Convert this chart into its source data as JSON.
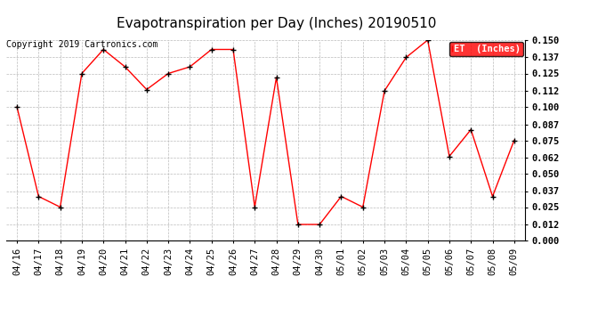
{
  "title": "Evapotranspiration per Day (Inches) 20190510",
  "copyright": "Copyright 2019 Cartronics.com",
  "legend_label": "ET  (Inches)",
  "x_labels": [
    "04/16",
    "04/17",
    "04/18",
    "04/19",
    "04/20",
    "04/21",
    "04/22",
    "04/23",
    "04/24",
    "04/25",
    "04/26",
    "04/27",
    "04/28",
    "04/29",
    "04/30",
    "05/01",
    "05/02",
    "05/03",
    "05/04",
    "05/05",
    "05/06",
    "05/07",
    "05/08",
    "05/09"
  ],
  "y_values": [
    0.1,
    0.033,
    0.025,
    0.125,
    0.143,
    0.13,
    0.113,
    0.125,
    0.13,
    0.143,
    0.143,
    0.025,
    0.122,
    0.012,
    0.012,
    0.033,
    0.025,
    0.112,
    0.137,
    0.15,
    0.063,
    0.083,
    0.033,
    0.075
  ],
  "line_color": "red",
  "marker_color": "black",
  "grid_color": "#bbbbbb",
  "background_color": "#ffffff",
  "title_fontsize": 11,
  "copyright_fontsize": 7,
  "tick_fontsize": 7.5,
  "ylim": [
    0.0,
    0.15
  ],
  "yticks": [
    0.0,
    0.012,
    0.025,
    0.037,
    0.05,
    0.062,
    0.075,
    0.087,
    0.1,
    0.112,
    0.125,
    0.137,
    0.15
  ],
  "legend_bg": "red",
  "legend_text_color": "white",
  "legend_fontsize": 7.5
}
